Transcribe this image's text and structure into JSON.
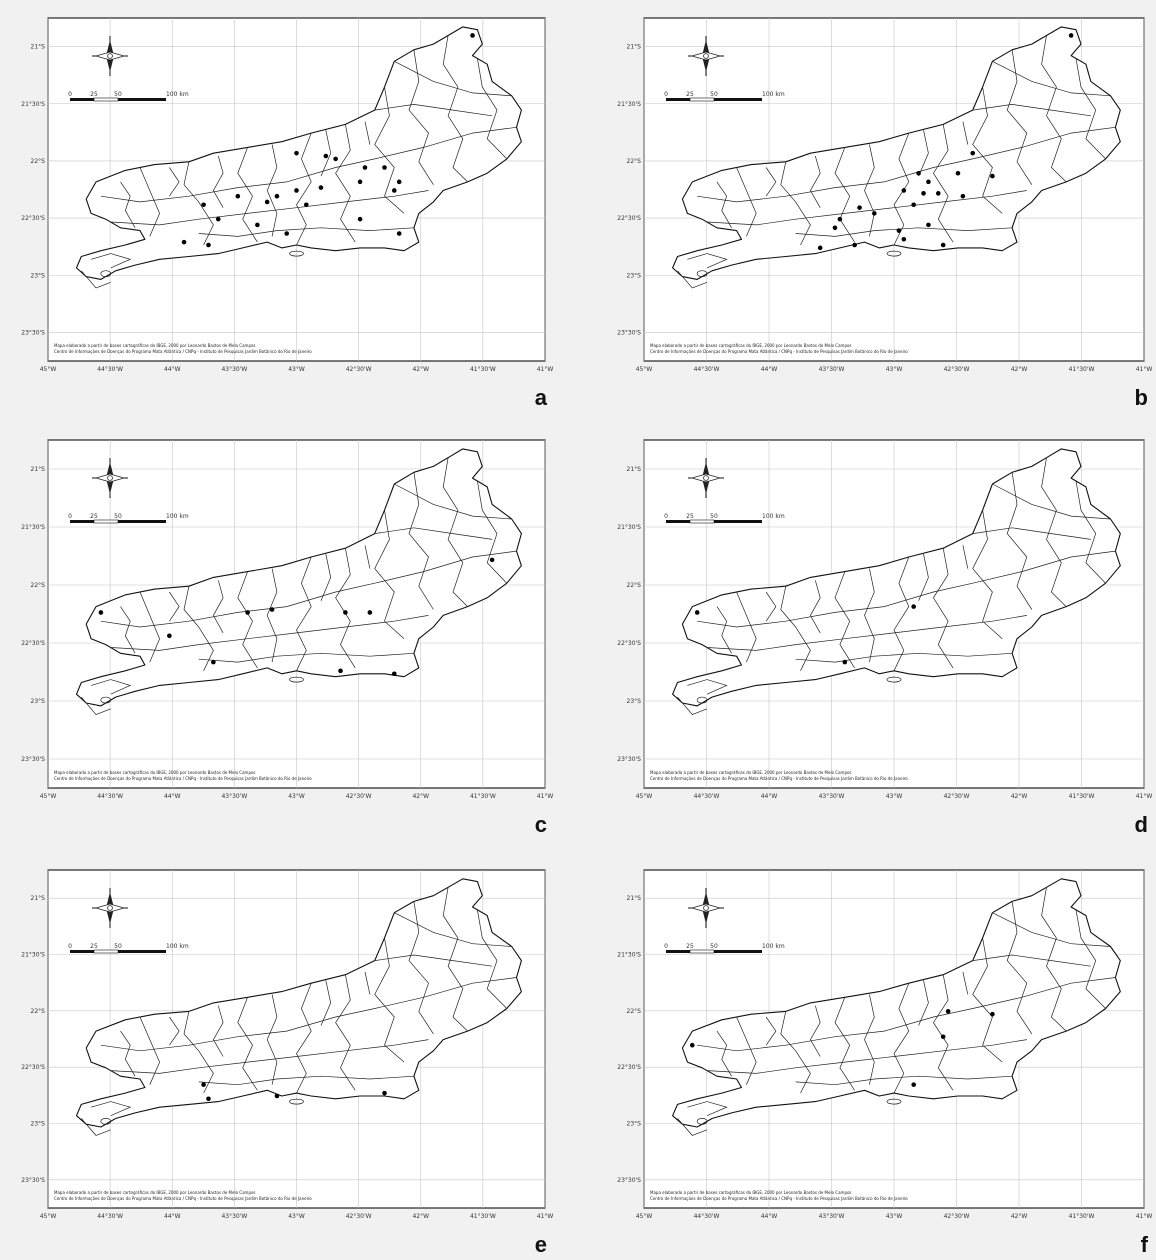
{
  "figure": {
    "panels": [
      {
        "letter": "a",
        "lat_labels": [
          "21°S",
          "21°30'S",
          "22°S",
          "22°30'S",
          "23°S",
          "23°30'S"
        ],
        "lon_labels": [
          "45°W",
          "44°30'W",
          "44°W",
          "43°30'W",
          "43°W",
          "42°30'W",
          "42°W",
          "41°30'W",
          "41°W"
        ],
        "scale_labels": [
          "0",
          "25",
          "50",
          "100 km"
        ],
        "credit_lines": [
          "Mapa elaborado a partir de bases cartográficas do IBGE, 2000 por Leonardo Bastos de Melo Campos",
          "Centro de Informações de Doenças do Programa Mata Atlântica / CNPq - Instituto de Pesquisas Jardim Botânico do Rio de Janeiro"
        ],
        "points": [
          [
            0.86,
            0.04
          ],
          [
            0.5,
            0.45
          ],
          [
            0.56,
            0.46
          ],
          [
            0.58,
            0.47
          ],
          [
            0.64,
            0.5
          ],
          [
            0.68,
            0.5
          ],
          [
            0.63,
            0.55
          ],
          [
            0.71,
            0.55
          ],
          [
            0.7,
            0.58
          ],
          [
            0.38,
            0.6
          ],
          [
            0.44,
            0.62
          ],
          [
            0.46,
            0.6
          ],
          [
            0.5,
            0.58
          ],
          [
            0.55,
            0.57
          ],
          [
            0.52,
            0.63
          ],
          [
            0.31,
            0.63
          ],
          [
            0.34,
            0.68
          ],
          [
            0.42,
            0.7
          ],
          [
            0.48,
            0.73
          ],
          [
            0.63,
            0.68
          ],
          [
            0.71,
            0.73
          ],
          [
            0.27,
            0.76
          ],
          [
            0.32,
            0.77
          ]
        ]
      },
      {
        "letter": "b",
        "lat_labels": [
          "21°S",
          "21°30'S",
          "22°S",
          "22°30'S",
          "23°S",
          "23°30'S"
        ],
        "lon_labels": [
          "45°W",
          "44°30'W",
          "44°W",
          "43°30'W",
          "43°W",
          "42°30'W",
          "42°W",
          "41°30'W",
          "41°W"
        ],
        "scale_labels": [
          "0",
          "25",
          "50",
          "100 km"
        ],
        "credit_lines": [
          "Mapa elaborado a partir de bases cartográficas do IBGE, 2000 por Leonardo Bastos de Melo Campos",
          "Centro de Informações de Doenças do Programa Mata Atlântica / CNPq - Instituto de Pesquisas Jardim Botânico do Rio de Janeiro"
        ],
        "points": [
          [
            0.86,
            0.04
          ],
          [
            0.66,
            0.45
          ],
          [
            0.55,
            0.52
          ],
          [
            0.57,
            0.55
          ],
          [
            0.63,
            0.52
          ],
          [
            0.7,
            0.53
          ],
          [
            0.52,
            0.58
          ],
          [
            0.56,
            0.59
          ],
          [
            0.59,
            0.59
          ],
          [
            0.64,
            0.6
          ],
          [
            0.54,
            0.63
          ],
          [
            0.43,
            0.64
          ],
          [
            0.46,
            0.66
          ],
          [
            0.39,
            0.68
          ],
          [
            0.38,
            0.71
          ],
          [
            0.51,
            0.72
          ],
          [
            0.57,
            0.7
          ],
          [
            0.52,
            0.75
          ],
          [
            0.35,
            0.78
          ],
          [
            0.42,
            0.77
          ],
          [
            0.6,
            0.77
          ]
        ]
      },
      {
        "letter": "c",
        "lat_labels": [
          "21°S",
          "21°30'S",
          "22°S",
          "22°30'S",
          "23°S",
          "23°30'S"
        ],
        "lon_labels": [
          "45°W",
          "44°30'W",
          "44°W",
          "43°30'W",
          "43°W",
          "42°30'W",
          "42°W",
          "41°30'W",
          "41°W"
        ],
        "scale_labels": [
          "0",
          "25",
          "50",
          "100 km"
        ],
        "credit_lines": [
          "Mapa elaborado a partir de bases cartográficas do IBGE, 2000 por Leonardo Bastos de Melo Campos",
          "Centro de Informações de Doenças do Programa Mata Atlântica / CNPq - Instituto de Pesquisas Jardim Botânico do Rio de Janeiro"
        ],
        "points": [
          [
            0.9,
            0.39
          ],
          [
            0.1,
            0.57
          ],
          [
            0.4,
            0.57
          ],
          [
            0.45,
            0.56
          ],
          [
            0.6,
            0.57
          ],
          [
            0.65,
            0.57
          ],
          [
            0.24,
            0.65
          ],
          [
            0.33,
            0.74
          ],
          [
            0.59,
            0.77
          ],
          [
            0.7,
            0.78
          ]
        ]
      },
      {
        "letter": "d",
        "lat_labels": [
          "21°S",
          "21°30'S",
          "22°S",
          "22°30'S",
          "23°S",
          "23°30'S"
        ],
        "lon_labels": [
          "45°W",
          "44°30'W",
          "44°W",
          "43°30'W",
          "43°W",
          "42°30'W",
          "42°W",
          "41°30'W",
          "41°W"
        ],
        "scale_labels": [
          "0",
          "25",
          "50",
          "100 km"
        ],
        "credit_lines": [
          "Mapa elaborado a partir de bases cartográficas do IBGE, 2000 por Leonardo Bastos de Melo Campos",
          "Centro de Informações de Doenças do Programa Mata Atlântica / CNPq - Instituto de Pesquisas Jardim Botânico do Rio de Janeiro"
        ],
        "points": [
          [
            0.1,
            0.57
          ],
          [
            0.54,
            0.55
          ],
          [
            0.4,
            0.74
          ]
        ]
      },
      {
        "letter": "e",
        "lat_labels": [
          "21°S",
          "21°30'S",
          "22°S",
          "22°30'S",
          "23°S",
          "23°30'S"
        ],
        "lon_labels": [
          "45°W",
          "44°30'W",
          "44°W",
          "43°30'W",
          "43°W",
          "42°30'W",
          "42°W",
          "41°30'W",
          "41°W"
        ],
        "scale_labels": [
          "0",
          "25",
          "50",
          "100 km"
        ],
        "credit_lines": [
          "Mapa elaborado a partir de bases cartográficas do IBGE, 2000 por Leonardo Bastos de Melo Campos",
          "Centro de Informações de Doenças do Programa Mata Atlântica / CNPq - Instituto de Pesquisas Jardim Botânico do Rio de Janeiro"
        ],
        "points": [
          [
            0.31,
            0.74
          ],
          [
            0.68,
            0.77
          ],
          [
            0.32,
            0.79
          ],
          [
            0.46,
            0.78
          ]
        ]
      },
      {
        "letter": "f",
        "lat_labels": [
          "21°S",
          "21°30'S",
          "22°S",
          "22°30'S",
          "23°S",
          "23°30'S"
        ],
        "lon_labels": [
          "45°W",
          "44°30'W",
          "44°W",
          "43°30'W",
          "43°W",
          "42°30'W",
          "42°W",
          "41°30'W",
          "41°W"
        ],
        "scale_labels": [
          "0",
          "25",
          "50",
          "100 km"
        ],
        "credit_lines": [
          "Mapa elaborado a partir de bases cartográficas do IBGE, 2000 por Leonardo Bastos de Melo Campos",
          "Centro de Informações de Doenças do Programa Mata Atlântica / CNPq - Instituto de Pesquisas Jardim Botânico do Rio de Janeiro"
        ],
        "points": [
          [
            0.61,
            0.48
          ],
          [
            0.7,
            0.49
          ],
          [
            0.6,
            0.57
          ],
          [
            0.09,
            0.6
          ],
          [
            0.54,
            0.74
          ]
        ]
      }
    ]
  }
}
